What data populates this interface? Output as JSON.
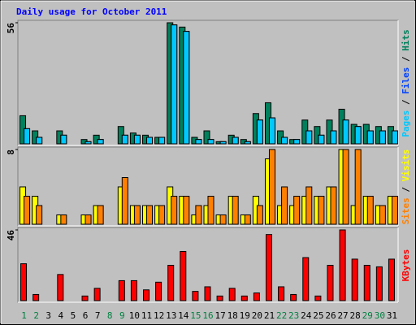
{
  "title": "Daily usage for October 2011",
  "categories": [
    "1",
    "2",
    "3",
    "4",
    "5",
    "6",
    "7",
    "8",
    "9",
    "10",
    "11",
    "12",
    "13",
    "14",
    "15",
    "16",
    "17",
    "18",
    "19",
    "20",
    "21",
    "22",
    "23",
    "24",
    "25",
    "26",
    "27",
    "28",
    "29",
    "30",
    "31"
  ],
  "category_colors": [
    "#008040",
    "#008040",
    "#000000",
    "#000000",
    "#000000",
    "#000000",
    "#000000",
    "#008040",
    "#008040",
    "#000000",
    "#000000",
    "#000000",
    "#000000",
    "#000000",
    "#008040",
    "#008040",
    "#000000",
    "#000000",
    "#000000",
    "#000000",
    "#000000",
    "#008040",
    "#008040",
    "#000000",
    "#000000",
    "#000000",
    "#000000",
    "#000000",
    "#008040",
    "#008040",
    "#000000"
  ],
  "chart_data": [
    {
      "type": "bar",
      "ylim": [
        0,
        56
      ],
      "yticks": [
        56
      ],
      "legend_separator": " / ",
      "series": [
        {
          "name": "Hits",
          "color": "#00805c",
          "values": [
            13,
            6,
            0,
            6,
            0,
            2,
            4,
            0,
            8,
            5,
            4,
            3,
            56,
            54,
            3,
            6,
            1,
            4,
            2,
            14,
            19,
            6,
            2,
            11,
            8,
            11,
            16,
            9,
            9,
            8,
            8
          ]
        },
        {
          "name": "Files",
          "color": "#0040ff",
          "values": [
            7,
            3,
            0,
            4,
            0,
            1,
            2,
            0,
            4,
            4,
            3,
            3,
            55,
            52,
            2,
            2,
            1,
            3,
            1,
            11,
            12,
            3,
            2,
            6,
            4,
            6,
            11,
            8,
            6,
            6,
            6
          ]
        },
        {
          "name": "Pages",
          "color": "#00c8ff",
          "values": [
            7,
            3,
            0,
            4,
            0,
            1,
            2,
            0,
            4,
            4,
            3,
            3,
            55,
            52,
            2,
            2,
            1,
            3,
            1,
            11,
            12,
            3,
            2,
            6,
            4,
            6,
            11,
            8,
            6,
            6,
            6
          ]
        }
      ]
    },
    {
      "type": "bar",
      "ylim": [
        0,
        8
      ],
      "yticks": [
        8
      ],
      "legend_separator": " / ",
      "series": [
        {
          "name": "Visits",
          "color": "#ffff00",
          "values": [
            4,
            3,
            0,
            1,
            0,
            1,
            2,
            0,
            4,
            2,
            2,
            2,
            4,
            3,
            1,
            2,
            1,
            3,
            1,
            3,
            7,
            2,
            2,
            3,
            3,
            4,
            8,
            2,
            3,
            2,
            3
          ]
        },
        {
          "name": "Sites",
          "color": "#ff8000",
          "values": [
            3,
            2,
            0,
            1,
            0,
            1,
            2,
            0,
            5,
            2,
            2,
            2,
            3,
            3,
            2,
            3,
            1,
            3,
            1,
            2,
            8,
            4,
            3,
            4,
            3,
            4,
            8,
            8,
            3,
            2,
            3
          ]
        }
      ]
    },
    {
      "type": "bar",
      "ylim": [
        0,
        46
      ],
      "yticks": [
        46
      ],
      "legend_separator": " / ",
      "series": [
        {
          "name": "KBytes",
          "color": "#ff0000",
          "values": [
            24,
            4,
            0,
            17,
            0,
            3,
            8,
            0,
            13,
            13,
            7,
            12,
            23,
            32,
            6,
            9,
            3,
            8,
            3,
            5,
            43,
            9,
            4,
            28,
            3,
            23,
            46,
            27,
            23,
            22,
            27
          ]
        }
      ]
    }
  ]
}
